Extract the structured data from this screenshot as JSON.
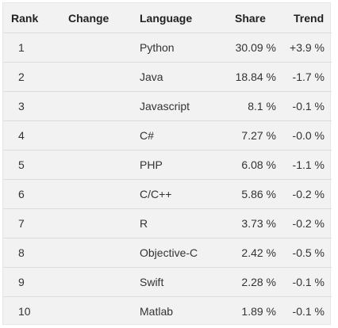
{
  "table": {
    "headers": {
      "rank": "Rank",
      "change": "Change",
      "language": "Language",
      "share": "Share",
      "trend": "Trend"
    },
    "rows": [
      {
        "rank": "1",
        "change": "",
        "language": "Python",
        "share": "30.09 %",
        "trend": "+3.9 %"
      },
      {
        "rank": "2",
        "change": "",
        "language": "Java",
        "share": "18.84 %",
        "trend": "-1.7 %"
      },
      {
        "rank": "3",
        "change": "",
        "language": "Javascript",
        "share": "8.1 %",
        "trend": "-0.1 %"
      },
      {
        "rank": "4",
        "change": "",
        "language": "C#",
        "share": "7.27 %",
        "trend": "-0.0 %"
      },
      {
        "rank": "5",
        "change": "",
        "language": "PHP",
        "share": "6.08 %",
        "trend": "-1.1 %"
      },
      {
        "rank": "6",
        "change": "",
        "language": "C/C++",
        "share": "5.86 %",
        "trend": "-0.2 %"
      },
      {
        "rank": "7",
        "change": "",
        "language": "R",
        "share": "3.73 %",
        "trend": "-0.2 %"
      },
      {
        "rank": "8",
        "change": "",
        "language": "Objective-C",
        "share": "2.42 %",
        "trend": "-0.5 %"
      },
      {
        "rank": "9",
        "change": "",
        "language": "Swift",
        "share": "2.28 %",
        "trend": "-0.1 %"
      },
      {
        "rank": "10",
        "change": "",
        "language": "Matlab",
        "share": "1.89 %",
        "trend": "-0.1 %"
      }
    ]
  }
}
